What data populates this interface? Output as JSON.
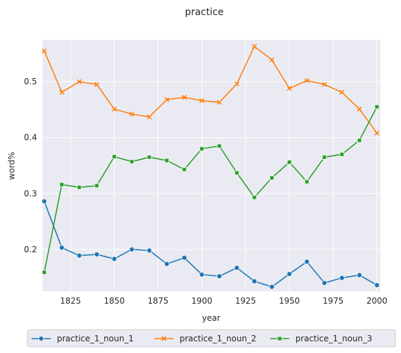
{
  "chart_data": {
    "type": "line",
    "title": "practice",
    "xlabel": "year",
    "ylabel": "word%",
    "xlim": [
      1809,
      2002
    ],
    "ylim": [
      0.125,
      0.575
    ],
    "xticks": [
      1825,
      1850,
      1875,
      1900,
      1925,
      1950,
      1975,
      2000
    ],
    "yticks": [
      0.2,
      0.3,
      0.4,
      0.5
    ],
    "ytick_labels": [
      "0.2",
      "0.3",
      "0.4",
      "0.5"
    ],
    "grid": true,
    "legend_position": "bottom",
    "x": [
      1810,
      1820,
      1830,
      1840,
      1850,
      1860,
      1870,
      1880,
      1890,
      1900,
      1910,
      1920,
      1930,
      1940,
      1950,
      1960,
      1970,
      1980,
      1990,
      2000
    ],
    "series": [
      {
        "name": "practice_1_noun_1",
        "color": "#1f77b4",
        "marker": "circle",
        "values": [
          0.286,
          0.203,
          0.189,
          0.191,
          0.183,
          0.2,
          0.198,
          0.174,
          0.185,
          0.155,
          0.152,
          0.167,
          0.143,
          0.133,
          0.156,
          0.178,
          0.14,
          0.149,
          0.154,
          0.136
        ]
      },
      {
        "name": "practice_1_noun_2",
        "color": "#ff7f0e",
        "marker": "x",
        "values": [
          0.555,
          0.481,
          0.5,
          0.495,
          0.451,
          0.442,
          0.437,
          0.468,
          0.472,
          0.466,
          0.463,
          0.496,
          0.563,
          0.539,
          0.488,
          0.502,
          0.495,
          0.481,
          0.451,
          0.408
        ]
      },
      {
        "name": "practice_1_noun_3",
        "color": "#2ca02c",
        "marker": "square",
        "values": [
          0.159,
          0.316,
          0.311,
          0.314,
          0.366,
          0.357,
          0.365,
          0.359,
          0.343,
          0.38,
          0.385,
          0.337,
          0.293,
          0.328,
          0.356,
          0.321,
          0.365,
          0.37,
          0.395,
          0.455
        ]
      }
    ]
  }
}
